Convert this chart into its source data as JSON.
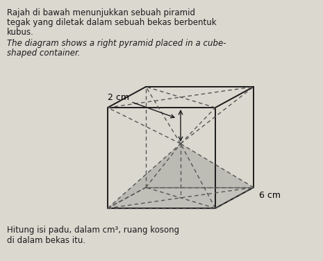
{
  "title_text1": "Rajah di bawah menunjukkan sebuah piramid",
  "title_text2": "tegak yang diletak dalam sebuah bekas berbentuk",
  "title_text3": "kubus.",
  "subtitle_text1": "The diagram shows a right pyramid placed in a cube-",
  "subtitle_text2": "shaped container.",
  "bottom_text1": "Hitung isi padu, dalam cm³, ruang kosong",
  "bottom_text2": "di dalam bekas itu.",
  "label_2cm": "2 cm",
  "label_6cm": "6 cm",
  "bg_color": "#dbd8d0",
  "line_color": "#1a1a1a",
  "dashed_color": "#555555",
  "pyramid_fill": "#b8b8b0",
  "text_color": "#1a1a1a"
}
